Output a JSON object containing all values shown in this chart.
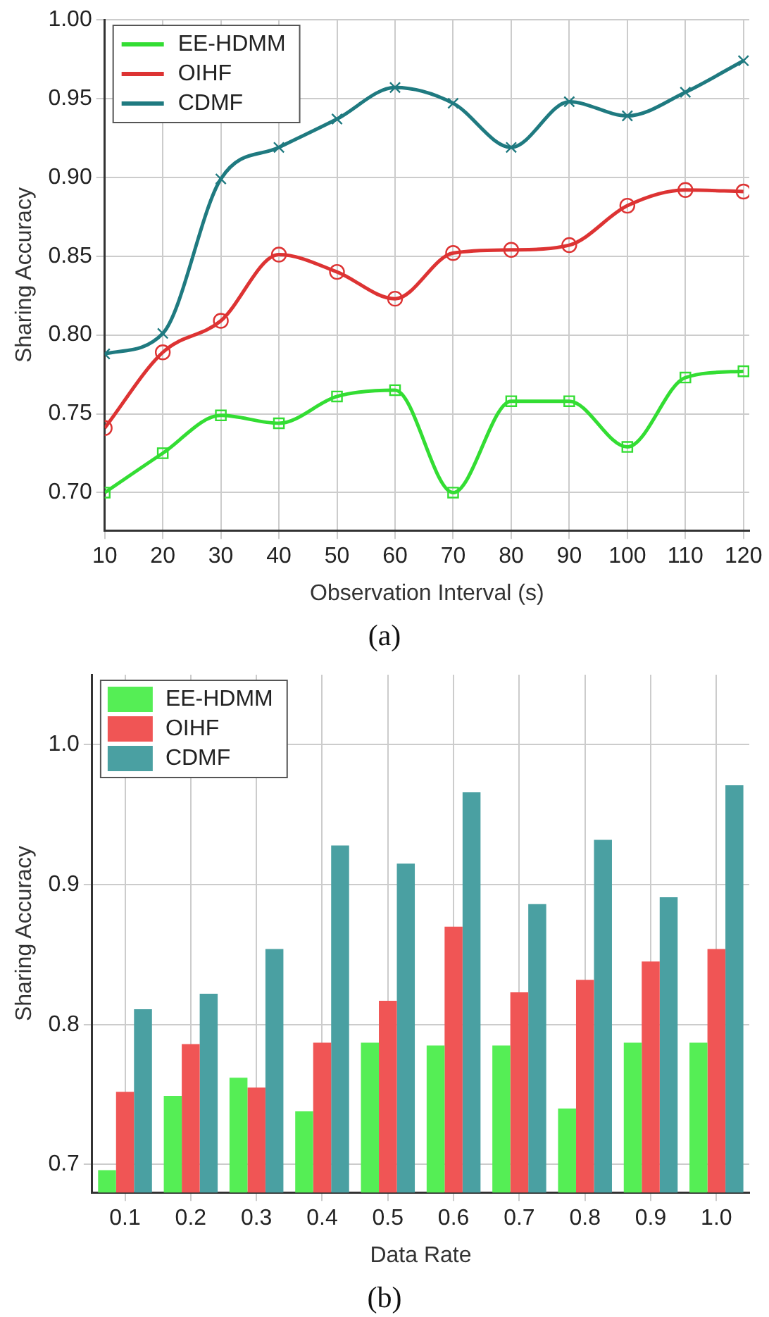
{
  "chart_data": [
    {
      "type": "line",
      "xlabel": "Observation Interval (s)",
      "ylabel": "Sharing Accuracy",
      "annotations": [
        "(a)"
      ],
      "x": [
        10,
        20,
        30,
        40,
        50,
        60,
        70,
        80,
        90,
        100,
        110,
        120
      ],
      "series": [
        {
          "name": "EE-HDMM",
          "color": "#33dd33",
          "marker": "square",
          "values": [
            0.7,
            0.725,
            0.749,
            0.744,
            0.761,
            0.765,
            0.7,
            0.758,
            0.758,
            0.729,
            0.773,
            0.777
          ]
        },
        {
          "name": "OIHF",
          "color": "#dd3333",
          "marker": "circle",
          "values": [
            0.741,
            0.789,
            0.809,
            0.851,
            0.84,
            0.823,
            0.852,
            0.854,
            0.857,
            0.882,
            0.892,
            0.891
          ]
        },
        {
          "name": "CDMF",
          "color": "#1f7a80",
          "marker": "cross",
          "values": [
            0.788,
            0.801,
            0.899,
            0.919,
            0.937,
            0.957,
            0.947,
            0.919,
            0.948,
            0.939,
            0.954,
            0.974
          ]
        }
      ],
      "xlim": [
        10,
        121
      ],
      "xticks": [
        10,
        20,
        30,
        40,
        50,
        60,
        70,
        80,
        90,
        100,
        110,
        120
      ],
      "ylim": [
        0.676,
        1.0
      ],
      "yticks": [
        {
          "value": 0.7,
          "label": "0.70"
        },
        0.75,
        {
          "value": 0.8,
          "label": "0.80"
        },
        0.85,
        {
          "value": 0.9,
          "label": "0.90"
        },
        0.95,
        {
          "value": 1.0,
          "label": "1.00"
        }
      ],
      "grid": true,
      "legend": "top left",
      "line_style": "solid"
    },
    {
      "type": "bar",
      "xlabel": "Data Rate",
      "ylabel": "Sharing Accuracy",
      "annotations": [
        "(b)"
      ],
      "categories": [
        "0.1",
        "0.2",
        "0.3",
        "0.4",
        "0.5",
        "0.6",
        "0.7",
        "0.8",
        "0.9",
        "1.0"
      ],
      "series": [
        {
          "name": "EE-HDMM",
          "color": "#55ee55",
          "values": [
            0.696,
            0.749,
            0.762,
            0.738,
            0.787,
            0.785,
            0.785,
            0.74,
            0.787,
            0.787
          ]
        },
        {
          "name": "OIHF",
          "color": "#f05555",
          "values": [
            0.752,
            0.786,
            0.755,
            0.787,
            0.817,
            0.87,
            0.823,
            0.832,
            0.845,
            0.854
          ]
        },
        {
          "name": "CDMF",
          "color": "#4aa0a2",
          "values": [
            0.811,
            0.822,
            0.854,
            0.928,
            0.915,
            0.966,
            0.886,
            0.932,
            0.891,
            0.971
          ]
        }
      ],
      "ylim": [
        0.68,
        1.05
      ],
      "yticks": [
        {
          "value": 0.7,
          "label": "0.7"
        },
        {
          "value": 0.8,
          "label": "0.8"
        },
        {
          "value": 0.9,
          "label": "0.9"
        },
        {
          "value": 1.0,
          "label": "1.0"
        }
      ],
      "grid": true,
      "legend": "top left"
    }
  ]
}
